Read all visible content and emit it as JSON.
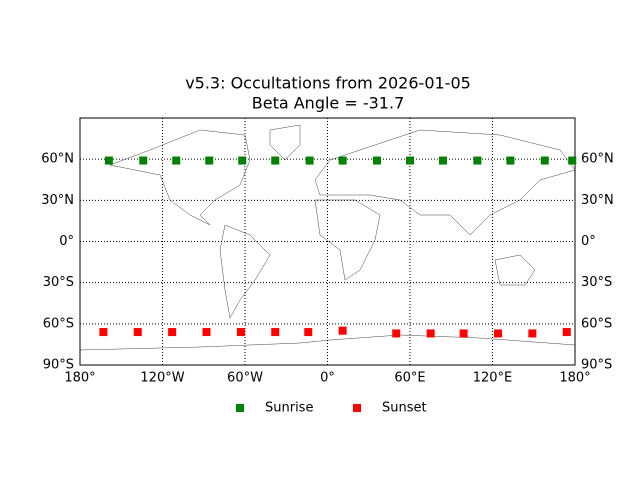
{
  "chart_data": {
    "type": "scatter",
    "title": "v5.3: Occultations from 2026-01-05",
    "subtitle": "Beta Angle = -31.7",
    "xlim": [
      -180,
      180
    ],
    "ylim": [
      -90,
      90
    ],
    "xticks": [
      {
        "value": -180,
        "label": "180°"
      },
      {
        "value": -120,
        "label": "120°W"
      },
      {
        "value": -60,
        "label": "60°W"
      },
      {
        "value": 0,
        "label": "0°"
      },
      {
        "value": 60,
        "label": "60°E"
      },
      {
        "value": 120,
        "label": "120°E"
      },
      {
        "value": 180,
        "label": "180°"
      }
    ],
    "yticks": [
      {
        "value": -90,
        "label": "90°S"
      },
      {
        "value": -60,
        "label": "60°S"
      },
      {
        "value": -30,
        "label": "30°S"
      },
      {
        "value": 0,
        "label": "0°"
      },
      {
        "value": 30,
        "label": "30°N"
      },
      {
        "value": 60,
        "label": "60°N"
      }
    ],
    "grid": true,
    "legend": "lower center",
    "series": [
      {
        "name": "Sunrise",
        "color": "#008000",
        "x": [
          -159,
          -134,
          -110,
          -86,
          -62,
          -38,
          -13,
          11,
          36,
          60,
          84,
          109,
          133,
          158,
          178
        ],
        "values": [
          59,
          59,
          59,
          59,
          59,
          59,
          59,
          59,
          59,
          59,
          59,
          59,
          59,
          59,
          59
        ]
      },
      {
        "name": "Sunset",
        "color": "#ff0000",
        "x": [
          -163,
          -138,
          -113,
          -88,
          -63,
          -38,
          -14,
          11,
          50,
          75,
          99,
          124,
          149,
          174
        ],
        "values": [
          -66,
          -66,
          -66,
          -66,
          -66,
          -66,
          -66,
          -65,
          -67,
          -67,
          -67,
          -67,
          -67,
          -66
        ]
      }
    ]
  }
}
